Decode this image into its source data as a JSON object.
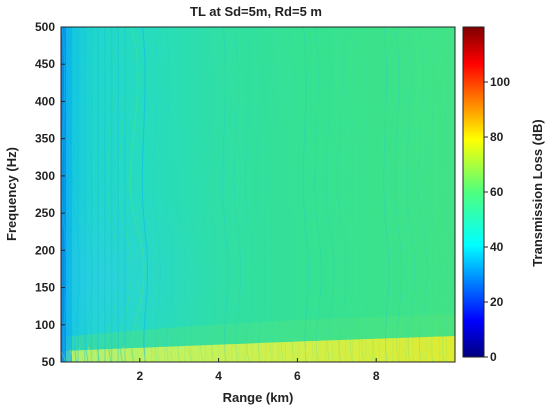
{
  "chart_data": {
    "type": "heatmap",
    "title": "TL at Sd=5m, Rd=5 m",
    "xlabel": "Range (km)",
    "ylabel": "Frequency (Hz)",
    "xlim": [
      0,
      10
    ],
    "ylim": [
      50,
      500
    ],
    "x_ticks": [
      2,
      4,
      6,
      8
    ],
    "y_ticks": [
      50,
      100,
      150,
      200,
      250,
      300,
      350,
      400,
      450,
      500
    ],
    "x_tick_labels": [
      "2",
      "4",
      "6",
      "8"
    ],
    "y_tick_labels": [
      "50",
      "100",
      "150",
      "200",
      "250",
      "300",
      "350",
      "400",
      "450",
      "500"
    ],
    "colorbar": {
      "label": "Transmission Loss (dB)",
      "range": [
        0,
        120
      ],
      "ticks": [
        0,
        20,
        40,
        60,
        80,
        100
      ],
      "tick_labels": [
        "0",
        "20",
        "40",
        "60",
        "80",
        "100"
      ],
      "colormap": "jet"
    },
    "field_summary": {
      "dominant_value_db": 57,
      "near_zero_range_value_db": 45,
      "low_frequency_long_range_value_db": 68,
      "pattern": "interference fringes across range and frequency"
    }
  },
  "colors": {
    "foreground": "#222222",
    "background": "#ffffff"
  }
}
